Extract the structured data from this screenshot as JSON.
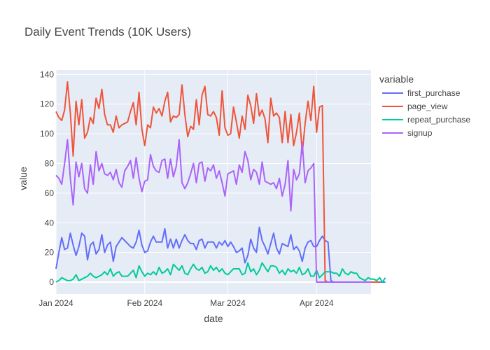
{
  "chart_data": {
    "type": "line",
    "title": "Daily Event Trends (10K Users)",
    "xlabel": "date",
    "ylabel": "value",
    "legend_title": "variable",
    "legend_position": "right",
    "grid": true,
    "x_start": "2024-01-01",
    "xlim": [
      "2024-01-01",
      "2024-04-20"
    ],
    "ylim": [
      -8,
      143
    ],
    "x_ticks": [
      {
        "date": "2024-01-01",
        "label": "Jan 2024"
      },
      {
        "date": "2024-02-01",
        "label": "Feb 2024"
      },
      {
        "date": "2024-03-01",
        "label": "Mar 2024"
      },
      {
        "date": "2024-04-01",
        "label": "Apr 2024"
      }
    ],
    "y_ticks": [
      0,
      20,
      40,
      60,
      80,
      100,
      120,
      140
    ],
    "series": [
      {
        "name": "first_purchase",
        "color": "#636efa",
        "values": [
          9,
          20,
          30,
          22,
          23,
          33,
          25,
          18,
          24,
          33,
          31,
          15,
          25,
          27,
          19,
          22,
          32,
          20,
          25,
          27,
          14,
          24,
          27,
          30,
          28,
          26,
          24,
          23,
          27,
          35,
          25,
          20,
          21,
          27,
          31,
          27,
          27,
          27,
          36,
          23,
          29,
          23,
          29,
          23,
          28,
          32,
          28,
          26,
          26,
          22,
          28,
          29,
          23,
          27,
          27,
          27,
          23,
          27,
          25,
          28,
          24,
          27,
          24,
          20,
          21,
          23,
          13,
          18,
          29,
          23,
          20,
          37,
          28,
          24,
          19,
          26,
          33,
          23,
          19,
          26,
          25,
          24,
          32,
          22,
          24,
          21,
          14,
          23,
          27,
          28,
          24,
          24,
          28,
          31,
          28,
          27,
          1,
          0,
          0,
          0,
          0,
          0,
          0,
          0,
          0,
          0,
          0,
          0,
          0,
          0,
          0,
          0,
          0,
          0,
          0,
          0
        ]
      },
      {
        "name": "page_view",
        "color": "#ef553b",
        "values": [
          115,
          111,
          109,
          116,
          135,
          114,
          85,
          122,
          106,
          123,
          97,
          101,
          111,
          107,
          124,
          117,
          130,
          113,
          106,
          106,
          101,
          112,
          104,
          106,
          107,
          108,
          115,
          121,
          106,
          128,
          103,
          92,
          106,
          104,
          118,
          114,
          117,
          112,
          122,
          128,
          108,
          112,
          111,
          113,
          133,
          113,
          98,
          105,
          103,
          123,
          106,
          126,
          132,
          113,
          112,
          115,
          111,
          99,
          129,
          104,
          99,
          100,
          118,
          108,
          97,
          112,
          103,
          126,
          119,
          107,
          127,
          112,
          116,
          110,
          94,
          124,
          112,
          114,
          111,
          94,
          115,
          94,
          113,
          92,
          101,
          114,
          87,
          107,
          122,
          109,
          132,
          101,
          118,
          119,
          1,
          0,
          0,
          0,
          0,
          0,
          0,
          0,
          0,
          0,
          0,
          0,
          0,
          0,
          0,
          0,
          0,
          0,
          0,
          0
        ]
      },
      {
        "name": "repeat_purchase",
        "color": "#00cc96",
        "values": [
          0,
          1,
          3,
          2,
          1,
          1,
          2,
          5,
          1,
          2,
          3,
          4,
          6,
          4,
          3,
          4,
          5,
          7,
          5,
          9,
          4,
          6,
          7,
          4,
          4,
          4,
          6,
          8,
          3,
          11,
          7,
          4,
          6,
          5,
          7,
          5,
          10,
          6,
          7,
          9,
          5,
          12,
          10,
          8,
          11,
          6,
          5,
          9,
          12,
          9,
          8,
          10,
          6,
          7,
          11,
          8,
          10,
          7,
          9,
          6,
          5,
          7,
          9,
          9,
          9,
          5,
          6,
          13,
          7,
          9,
          5,
          8,
          13,
          10,
          7,
          11,
          11,
          10,
          6,
          8,
          5,
          9,
          7,
          8,
          6,
          10,
          5,
          6,
          9,
          4,
          4,
          8,
          3,
          5,
          7,
          7,
          7,
          6,
          6,
          4,
          9,
          6,
          5,
          7,
          6,
          6,
          3,
          2,
          1,
          3,
          2,
          2,
          1,
          3,
          0,
          3
        ]
      },
      {
        "name": "signup",
        "color": "#ab63fa",
        "values": [
          72,
          70,
          66,
          80,
          96,
          70,
          52,
          81,
          71,
          80,
          63,
          60,
          79,
          66,
          88,
          75,
          80,
          73,
          72,
          74,
          69,
          76,
          67,
          64,
          75,
          78,
          82,
          70,
          84,
          70,
          61,
          68,
          69,
          86,
          78,
          75,
          74,
          82,
          83,
          70,
          83,
          71,
          78,
          96,
          67,
          63,
          67,
          73,
          80,
          67,
          80,
          81,
          68,
          77,
          75,
          79,
          70,
          75,
          67,
          58,
          73,
          74,
          75,
          66,
          79,
          74,
          88,
          82,
          69,
          76,
          74,
          66,
          81,
          68,
          67,
          66,
          67,
          63,
          70,
          58,
          66,
          82,
          48,
          76,
          69,
          73,
          94,
          67,
          75,
          77,
          80,
          0,
          0,
          0,
          0,
          0,
          0,
          0,
          0,
          0,
          0,
          0,
          0,
          0,
          0,
          0,
          0,
          0,
          0,
          0,
          0
        ]
      }
    ]
  }
}
